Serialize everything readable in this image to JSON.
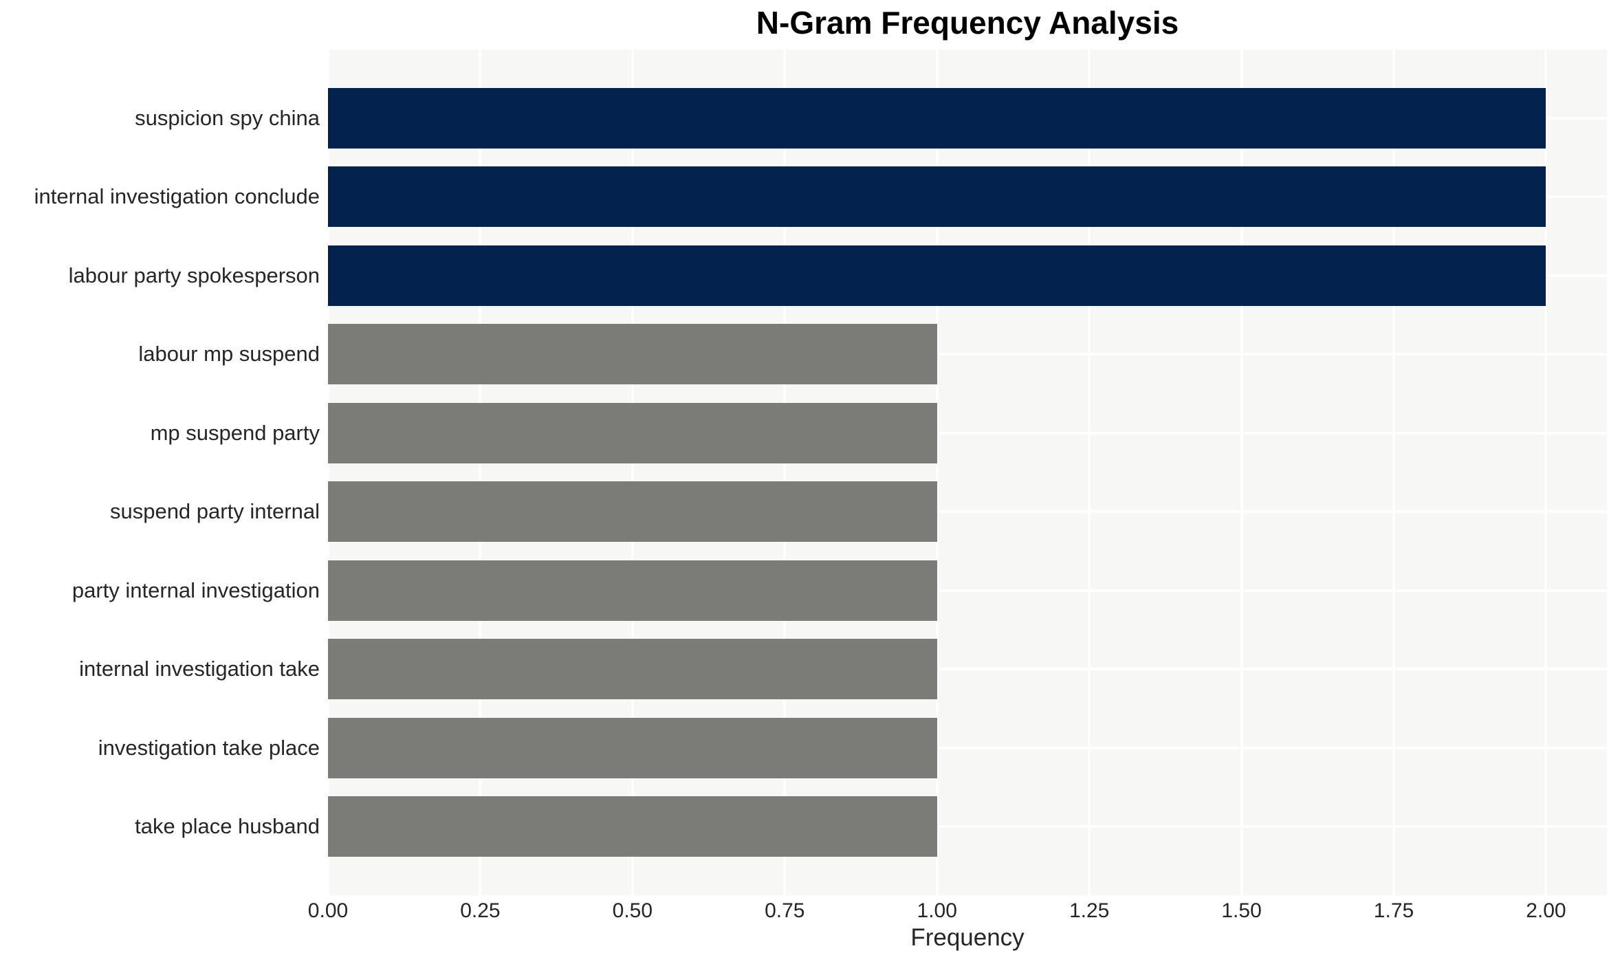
{
  "chart_data": {
    "type": "bar",
    "orientation": "horizontal",
    "title": "N-Gram Frequency Analysis",
    "xlabel": "Frequency",
    "ylabel": "",
    "categories": [
      "suspicion spy china",
      "internal investigation conclude",
      "labour party spokesperson",
      "labour mp suspend",
      "mp suspend party",
      "suspend party internal",
      "party internal investigation",
      "internal investigation take",
      "investigation take place",
      "take place husband"
    ],
    "values": [
      2,
      2,
      2,
      1,
      1,
      1,
      1,
      1,
      1,
      1
    ],
    "bar_colors": [
      "#03234e",
      "#03234e",
      "#03234e",
      "#7b7b78",
      "#7b7b78",
      "#7b7b78",
      "#7b7b78",
      "#7b7b78",
      "#7b7b78",
      "#7b7b78"
    ],
    "xlim": [
      0,
      2.1
    ],
    "xticks": [
      0.0,
      0.25,
      0.5,
      0.75,
      1.0,
      1.25,
      1.5,
      1.75,
      2.0
    ],
    "xtick_labels": [
      "0.00",
      "0.25",
      "0.50",
      "0.75",
      "1.00",
      "1.25",
      "1.50",
      "1.75",
      "2.00"
    ],
    "grid": true,
    "legend": false,
    "colors": {
      "plot_background": "#f7f7f6",
      "gridline": "#ffffff",
      "tick_text": "#262626",
      "title_text": "#000000"
    }
  }
}
